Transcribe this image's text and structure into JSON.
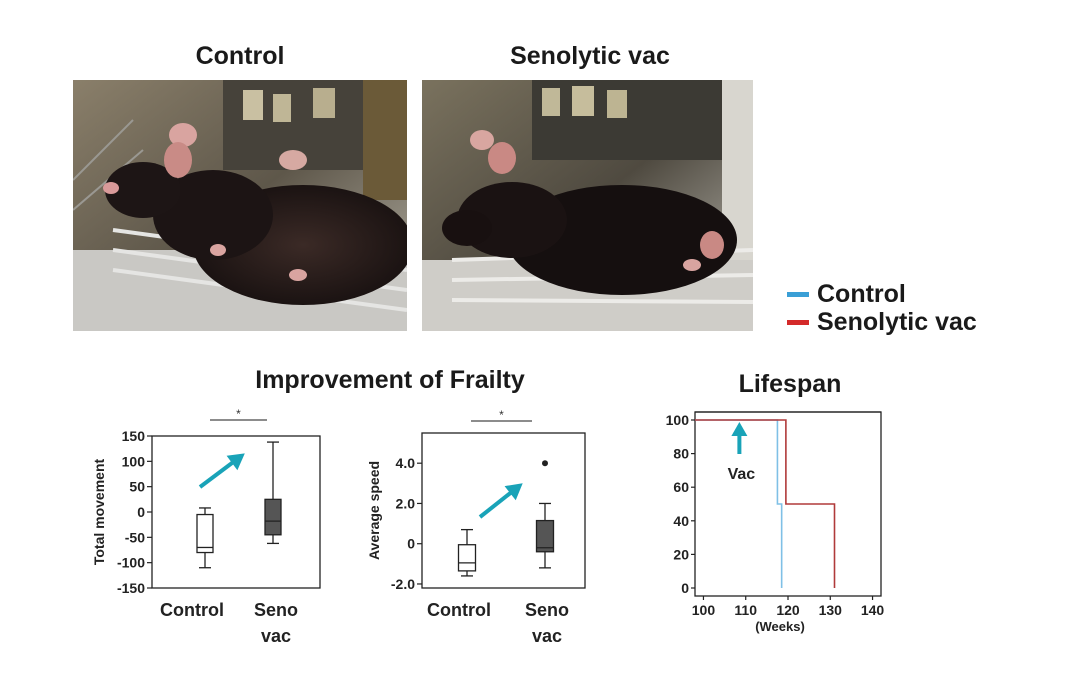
{
  "photos": {
    "left_title": "Control",
    "right_title": "Senolytic vac"
  },
  "legend": [
    {
      "label": "Control",
      "color": "#3a9fd6"
    },
    {
      "label": "Senolytic vac",
      "color": "#d42a2a"
    }
  ],
  "frailty_title": "Improvement of Frailty",
  "lifespan_title": "Lifespan",
  "chart_data": [
    {
      "type": "box",
      "ylabel": "Total movement",
      "ylim": [
        -150,
        150
      ],
      "yticks": [
        150,
        100,
        50,
        0,
        -50,
        -100,
        -150
      ],
      "ytick_labels": [
        "150",
        "100",
        "50",
        "0",
        "-50",
        "-100",
        "-150"
      ],
      "categories": [
        "Control",
        "Seno vac"
      ],
      "boxes": [
        {
          "min": -110,
          "q1": -80,
          "median": -70,
          "q3": -5,
          "max": 8,
          "color": "#ffffff"
        },
        {
          "min": -62,
          "q1": -45,
          "median": -18,
          "q3": 25,
          "max": 138,
          "color": "#555555"
        }
      ],
      "significance": "*",
      "arrow_color": "#19a3b8"
    },
    {
      "type": "box",
      "ylabel": "Average speed",
      "ylim": [
        -2.2,
        5.5
      ],
      "yticks": [
        4.0,
        2.0,
        0,
        -2.0
      ],
      "ytick_labels": [
        "4.0",
        "2.0",
        "0",
        "-2.0"
      ],
      "categories": [
        "Control",
        "Seno vac"
      ],
      "boxes": [
        {
          "min": -1.6,
          "q1": -1.35,
          "median": -0.95,
          "q3": -0.05,
          "max": 0.7,
          "color": "#ffffff"
        },
        {
          "min": -1.2,
          "q1": -0.4,
          "median": -0.2,
          "q3": 1.15,
          "max": 2.0,
          "outlier": 4.0,
          "color": "#555555"
        }
      ],
      "significance": "*",
      "arrow_color": "#19a3b8"
    },
    {
      "type": "line",
      "title": "Lifespan",
      "xlabel": "(Weeks)",
      "xlim": [
        98,
        142
      ],
      "xticks": [
        100,
        110,
        120,
        130,
        140
      ],
      "ylim": [
        0,
        100
      ],
      "yticks": [
        100,
        80,
        60,
        40,
        20,
        0
      ],
      "series": [
        {
          "name": "Control",
          "color": "#7fc0e6",
          "x": [
            98,
            117.5,
            117.5,
            118.5,
            118.5
          ],
          "y": [
            100,
            100,
            50,
            50,
            0
          ]
        },
        {
          "name": "Senolytic vac",
          "color": "#b03a3a",
          "x": [
            98,
            119.5,
            119.5,
            131,
            131
          ],
          "y": [
            100,
            100,
            50,
            50,
            0
          ]
        }
      ],
      "annotation": {
        "text": "Vac",
        "x": 108.5,
        "arrow_color": "#19a3b8"
      }
    }
  ]
}
